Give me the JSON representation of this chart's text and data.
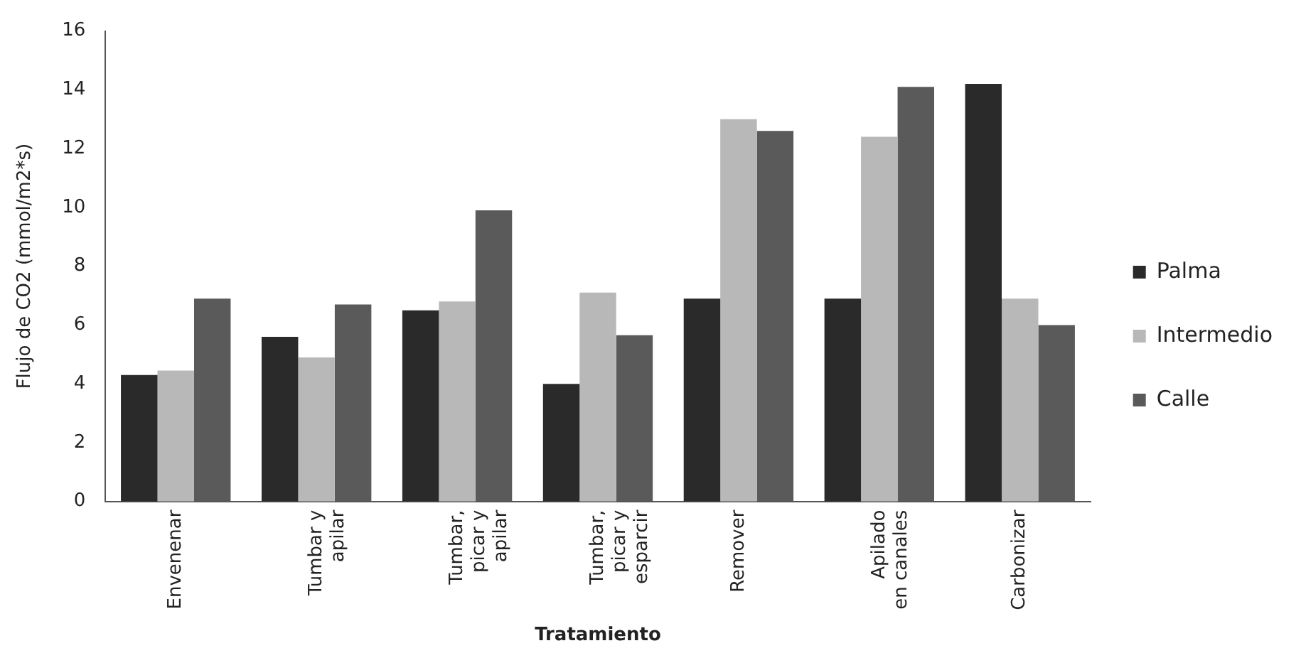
{
  "chart_data": {
    "type": "bar",
    "xlabel": "Tratamiento",
    "ylabel": "Flujo de CO2 (mmol/m2*s)",
    "categories": [
      "Envenenar",
      "Tumbar y\napilar",
      "Tumbar,\npicar y\napilar",
      "Tumbar,\npicar y\nesparcir",
      "Remover",
      "Apilado\nen canales",
      "Carbonizar"
    ],
    "series": [
      {
        "name": "Palma",
        "color": "#2a2a2a",
        "values": [
          4.3,
          5.6,
          6.5,
          4.0,
          6.9,
          6.9,
          14.2
        ]
      },
      {
        "name": "Intermedio",
        "color": "#b8b8b8",
        "values": [
          4.45,
          4.9,
          6.8,
          7.1,
          13.0,
          12.4,
          6.9
        ]
      },
      {
        "name": "Calle",
        "color": "#5a5a5a",
        "values": [
          6.9,
          6.7,
          9.9,
          5.65,
          12.6,
          14.1,
          6.0
        ]
      }
    ],
    "ylim": [
      0,
      16
    ],
    "yticks": [
      0,
      2,
      4,
      6,
      8,
      10,
      12,
      14,
      16
    ],
    "grid": false,
    "legend": "right"
  }
}
